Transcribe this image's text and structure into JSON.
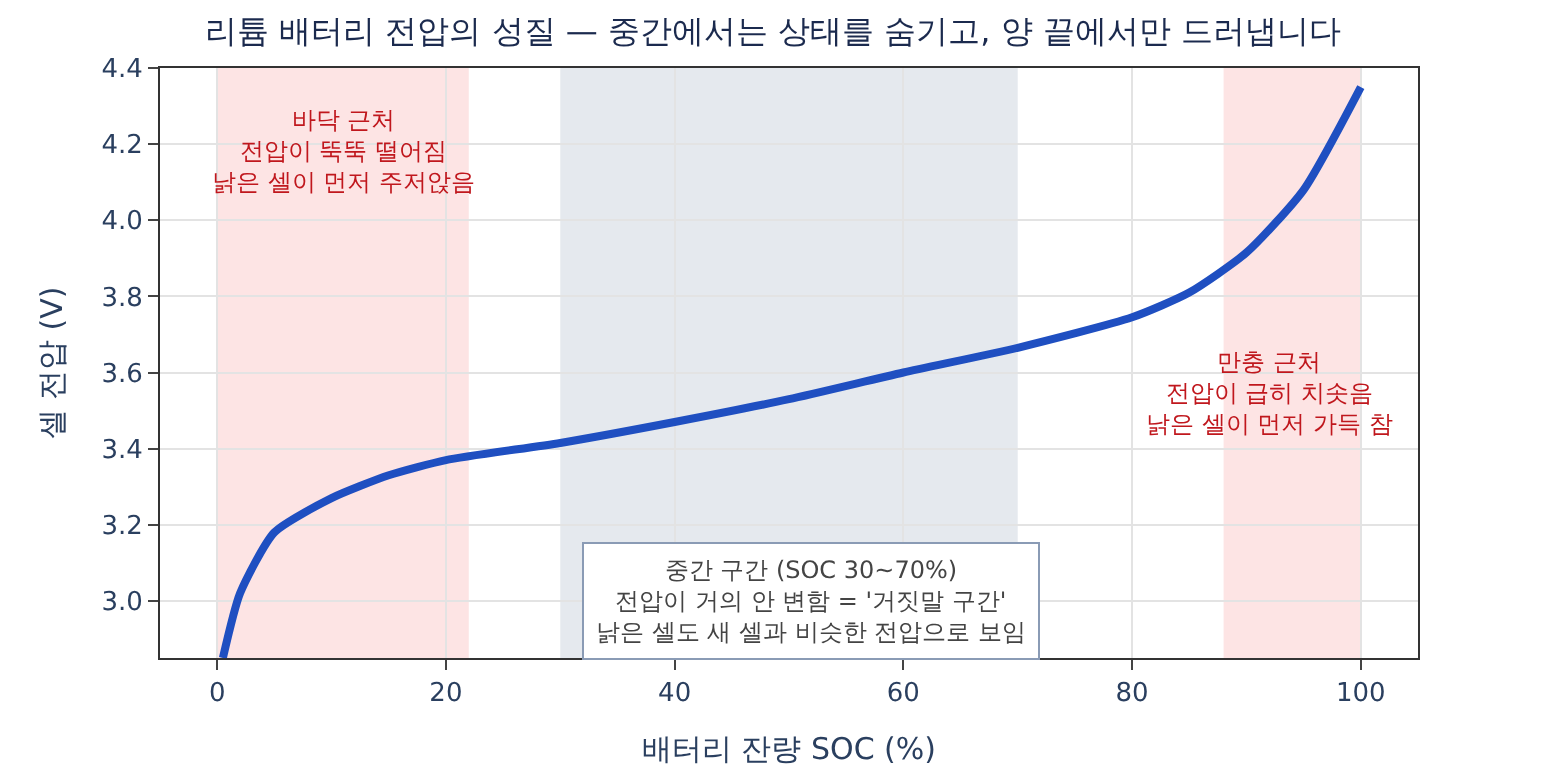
{
  "chart_data": {
    "type": "line",
    "title": "리튬 배터리 전압의 성질 — 중간에서는 상태를 숨기고, 양 끝에서만 드러냅니다",
    "xlabel": "배터리 잔량 SOC (%)",
    "ylabel": "셀 전압 (V)",
    "x": [
      0.5,
      2,
      5,
      10,
      15,
      20,
      30,
      40,
      50,
      60,
      70,
      80,
      85,
      90,
      95,
      100
    ],
    "series": [
      {
        "color": "#1f4fc1",
        "values": [
          2.85,
          3.02,
          3.18,
          3.27,
          3.33,
          3.37,
          3.415,
          3.47,
          3.53,
          3.6,
          3.665,
          3.745,
          3.81,
          3.915,
          4.08,
          4.35
        ]
      }
    ],
    "xlim": [
      -5,
      105
    ],
    "ylim": [
      2.85,
      4.4
    ],
    "xticks": [
      0,
      20,
      40,
      60,
      80,
      100
    ],
    "yticks": [
      {
        "value": 3.0,
        "label": "3.0"
      },
      {
        "value": 3.2,
        "label": "3.2"
      },
      {
        "value": 3.4,
        "label": "3.4"
      },
      {
        "value": 3.6,
        "label": "3.6"
      },
      {
        "value": 3.8,
        "label": "3.8"
      },
      {
        "value": 4.0,
        "label": "4.0"
      },
      {
        "value": 4.2,
        "label": "4.2"
      },
      {
        "value": 4.4,
        "label": "4.4"
      }
    ],
    "bands": [
      {
        "axis": "x",
        "from": 0,
        "to": 22,
        "color": "#fde4e4",
        "label": "바닥 근처\n전압이 뚝뚝 떨어짐\n낡은 셀이 먼저 주저앉음"
      },
      {
        "axis": "x",
        "from": 30,
        "to": 70,
        "color": "#e5e9ee",
        "label": "중간 구간 (SOC 30~70%)\n전압이 거의 안 변함 = '거짓말 구간'\n낡은 셀도 새 셀과 비슷한 전압으로 보임"
      },
      {
        "axis": "x",
        "from": 88,
        "to": 100,
        "color": "#fde4e4",
        "label": "만충 근처\n전압이 급히 치솟음\n낡은 셀이 먼저 가득 참"
      }
    ],
    "grid": true,
    "marker": "none",
    "line_style": "solid"
  }
}
